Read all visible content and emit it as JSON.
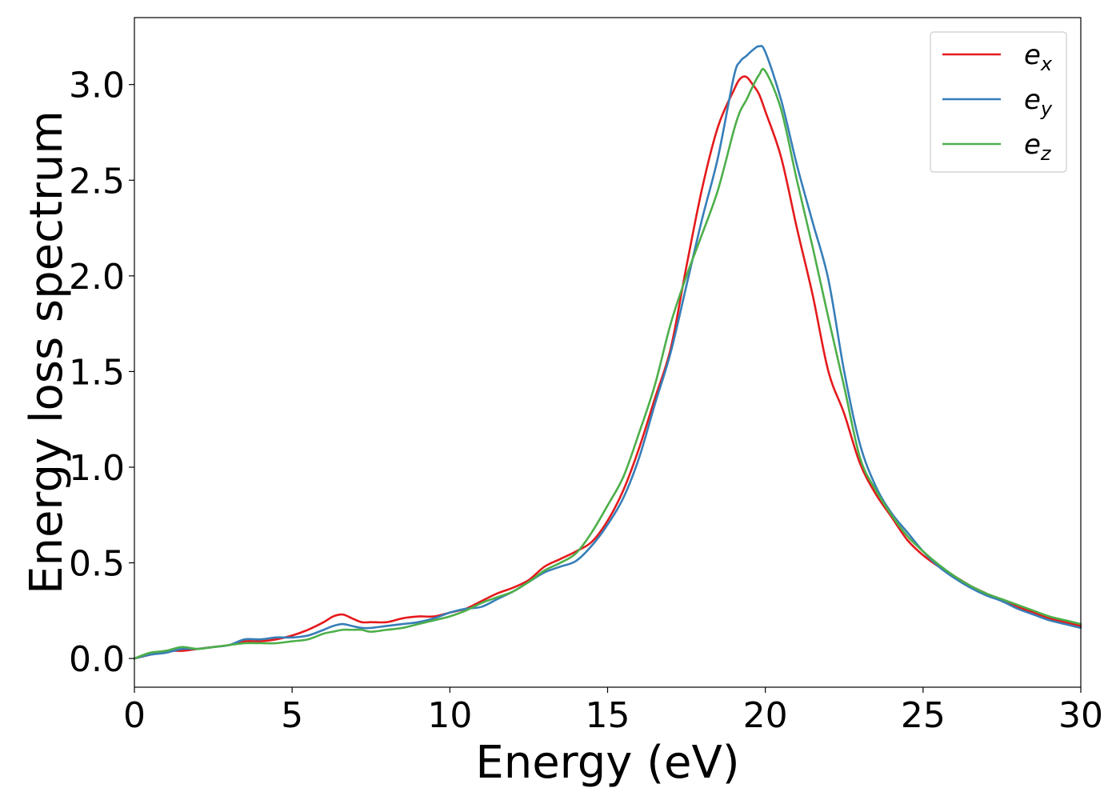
{
  "chart_data": {
    "type": "line",
    "xlabel": "Energy (eV)",
    "ylabel": "Energy loss spectrum",
    "xlim": [
      0,
      30
    ],
    "ylim": [
      -0.15,
      3.35
    ],
    "xticks": [
      0,
      5,
      10,
      15,
      20,
      25,
      30
    ],
    "xtick_labels": [
      "0",
      "5",
      "10",
      "15",
      "20",
      "25",
      "30"
    ],
    "yticks": [
      0.0,
      0.5,
      1.0,
      1.5,
      2.0,
      2.5,
      3.0
    ],
    "ytick_labels": [
      "0.0",
      "0.5",
      "1.0",
      "1.5",
      "2.0",
      "2.5",
      "3.0"
    ],
    "grid": false,
    "legend_position": "top-right",
    "series": [
      {
        "name": "e_x",
        "label_base": "e",
        "label_sub": "x",
        "color": "#e41a1c",
        "x": [
          0,
          0.5,
          1,
          1.5,
          2,
          2.5,
          3,
          3.5,
          4,
          4.5,
          5,
          5.5,
          6,
          6.3,
          6.6,
          6.9,
          7.2,
          7.5,
          8,
          8.5,
          9,
          9.5,
          10,
          10.5,
          11,
          11.5,
          12,
          12.5,
          13,
          13.5,
          14,
          14.5,
          15,
          15.5,
          16,
          16.5,
          17,
          17.5,
          18,
          18.5,
          19,
          19.2,
          19.4,
          19.6,
          19.8,
          20,
          20.5,
          21,
          21.5,
          22,
          22.5,
          23,
          23.5,
          24,
          24.5,
          25,
          25.5,
          26,
          26.5,
          27,
          27.5,
          28,
          28.5,
          29,
          29.5,
          30
        ],
        "y": [
          0.0,
          0.02,
          0.04,
          0.04,
          0.05,
          0.06,
          0.07,
          0.09,
          0.09,
          0.1,
          0.12,
          0.15,
          0.19,
          0.22,
          0.23,
          0.21,
          0.19,
          0.19,
          0.19,
          0.21,
          0.22,
          0.22,
          0.24,
          0.26,
          0.3,
          0.34,
          0.37,
          0.41,
          0.48,
          0.52,
          0.56,
          0.61,
          0.72,
          0.88,
          1.1,
          1.36,
          1.62,
          2.05,
          2.46,
          2.78,
          2.97,
          3.03,
          3.04,
          3.0,
          2.95,
          2.86,
          2.62,
          2.25,
          1.9,
          1.5,
          1.28,
          1.02,
          0.86,
          0.74,
          0.62,
          0.54,
          0.48,
          0.43,
          0.38,
          0.34,
          0.3,
          0.27,
          0.24,
          0.21,
          0.19,
          0.17
        ]
      },
      {
        "name": "e_y",
        "label_base": "e",
        "label_sub": "y",
        "color": "#377eb8",
        "x": [
          0,
          0.5,
          1,
          1.5,
          2,
          2.5,
          3,
          3.5,
          4,
          4.5,
          5,
          5.5,
          6,
          6.3,
          6.6,
          6.9,
          7.2,
          7.5,
          8,
          8.5,
          9,
          9.5,
          10,
          10.5,
          11,
          11.5,
          12,
          12.5,
          13,
          13.5,
          14,
          14.5,
          15,
          15.5,
          16,
          16.5,
          17,
          17.5,
          18,
          18.5,
          19,
          19.2,
          19.4,
          19.6,
          19.8,
          20,
          20.5,
          21,
          21.5,
          22,
          22.5,
          23,
          23.5,
          24,
          24.5,
          25,
          25.5,
          26,
          26.5,
          27,
          27.5,
          28,
          28.5,
          29,
          29.5,
          30
        ],
        "y": [
          0.0,
          0.02,
          0.03,
          0.05,
          0.05,
          0.06,
          0.07,
          0.1,
          0.1,
          0.11,
          0.11,
          0.12,
          0.15,
          0.17,
          0.18,
          0.17,
          0.16,
          0.16,
          0.17,
          0.18,
          0.19,
          0.21,
          0.24,
          0.26,
          0.27,
          0.31,
          0.35,
          0.4,
          0.45,
          0.48,
          0.51,
          0.59,
          0.7,
          0.84,
          1.05,
          1.33,
          1.6,
          1.95,
          2.3,
          2.62,
          3.04,
          3.12,
          3.15,
          3.18,
          3.2,
          3.17,
          2.92,
          2.58,
          2.28,
          1.98,
          1.5,
          1.12,
          0.9,
          0.76,
          0.66,
          0.56,
          0.48,
          0.42,
          0.37,
          0.33,
          0.3,
          0.26,
          0.23,
          0.2,
          0.18,
          0.16
        ]
      },
      {
        "name": "e_z",
        "label_base": "e",
        "label_sub": "z",
        "color": "#4daf4a",
        "x": [
          0,
          0.5,
          1,
          1.5,
          2,
          2.5,
          3,
          3.5,
          4,
          4.5,
          5,
          5.5,
          6,
          6.3,
          6.6,
          6.9,
          7.2,
          7.5,
          8,
          8.5,
          9,
          9.5,
          10,
          10.5,
          11,
          11.5,
          12,
          12.5,
          13,
          13.5,
          14,
          14.5,
          15,
          15.5,
          16,
          16.5,
          17,
          17.5,
          18,
          18.5,
          19,
          19.2,
          19.4,
          19.6,
          19.8,
          20,
          20.5,
          21,
          21.5,
          22,
          22.5,
          23,
          23.5,
          24,
          24.5,
          25,
          25.5,
          26,
          26.5,
          27,
          27.5,
          28,
          28.5,
          29,
          29.5,
          30
        ],
        "y": [
          0.0,
          0.03,
          0.04,
          0.06,
          0.05,
          0.06,
          0.07,
          0.08,
          0.08,
          0.08,
          0.09,
          0.1,
          0.13,
          0.14,
          0.15,
          0.15,
          0.15,
          0.14,
          0.15,
          0.16,
          0.18,
          0.2,
          0.22,
          0.25,
          0.29,
          0.32,
          0.35,
          0.4,
          0.46,
          0.5,
          0.55,
          0.66,
          0.8,
          0.95,
          1.18,
          1.43,
          1.75,
          2.0,
          2.22,
          2.45,
          2.76,
          2.86,
          2.92,
          2.99,
          3.05,
          3.07,
          2.87,
          2.5,
          2.15,
          1.78,
          1.42,
          1.05,
          0.88,
          0.75,
          0.64,
          0.56,
          0.49,
          0.43,
          0.38,
          0.34,
          0.31,
          0.28,
          0.25,
          0.22,
          0.2,
          0.18
        ]
      }
    ]
  }
}
